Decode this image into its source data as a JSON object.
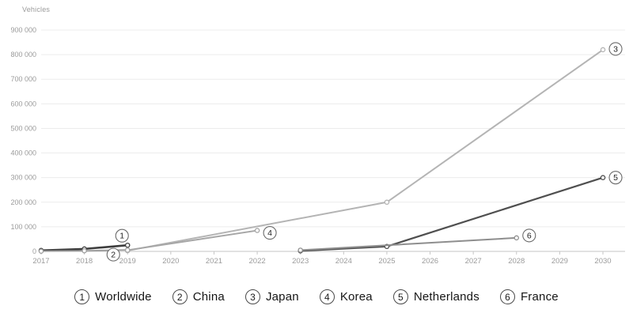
{
  "chart_data": {
    "type": "line",
    "title": "",
    "xlabel": "",
    "ylabel": "Vehicles",
    "x_ticks": [
      2017,
      2018,
      2019,
      2020,
      2021,
      2022,
      2023,
      2024,
      2025,
      2026,
      2027,
      2028,
      2029,
      2030
    ],
    "y_max": 900000,
    "y_gridlines": [
      {
        "value": 900000,
        "label": "900 000"
      },
      {
        "value": 800000,
        "label": "800 000"
      },
      {
        "value": 700000,
        "label": "700 000"
      },
      {
        "value": 600000,
        "label": "600 000"
      },
      {
        "value": 500000,
        "label": "500 000"
      },
      {
        "value": 400000,
        "label": "400 000"
      },
      {
        "value": 300000,
        "label": "300 000"
      },
      {
        "value": 200000,
        "label": "200 000"
      },
      {
        "value": 100000,
        "label": "100 000"
      },
      {
        "value": 0,
        "label": "0"
      }
    ],
    "grid": true,
    "legend_position": "bottom",
    "series": [
      {
        "id": "1",
        "name": "Worldwide",
        "color": "#3d3d3d",
        "width": 2.6,
        "points": [
          [
            2017,
            4000
          ],
          [
            2018,
            10000
          ],
          [
            2019,
            25000
          ]
        ],
        "label_point": [
          2019,
          25000
        ],
        "label_offset": [
          -7,
          -12
        ]
      },
      {
        "id": "2",
        "name": "China",
        "color": "#9c9c9c",
        "width": 1.8,
        "points": [
          [
            2017,
            1000
          ],
          [
            2018,
            2500
          ],
          [
            2019,
            6000
          ]
        ],
        "label_point": [
          2019,
          6000
        ],
        "label_offset": [
          -18,
          6
        ]
      },
      {
        "id": "3",
        "name": "Japan",
        "color": "#b4b4b4",
        "width": 2,
        "points": [
          [
            2019,
            3000
          ],
          [
            2025,
            200000
          ],
          [
            2030,
            820000
          ]
        ],
        "label_point": [
          2030,
          820000
        ],
        "label_offset": [
          16,
          -1
        ]
      },
      {
        "id": "4",
        "name": "Korea",
        "color": "#a6a6a6",
        "width": 2,
        "points": [
          [
            2019,
            5000
          ],
          [
            2022,
            85000
          ]
        ],
        "label_point": [
          2022,
          85000
        ],
        "label_offset": [
          16,
          3
        ]
      },
      {
        "id": "5",
        "name": "Netherlands",
        "color": "#4f4f4f",
        "width": 2.2,
        "points": [
          [
            2023,
            2000
          ],
          [
            2025,
            20000
          ],
          [
            2030,
            300000
          ]
        ],
        "label_point": [
          2030,
          300000
        ],
        "label_offset": [
          16,
          0
        ]
      },
      {
        "id": "6",
        "name": "France",
        "color": "#8e8e8e",
        "width": 2,
        "points": [
          [
            2023,
            5000
          ],
          [
            2028,
            55000
          ]
        ],
        "label_point": [
          2028,
          55000
        ],
        "label_offset": [
          16,
          -3
        ]
      }
    ]
  },
  "legend": {
    "items": [
      {
        "num": "1",
        "label": "Worldwide"
      },
      {
        "num": "2",
        "label": "China"
      },
      {
        "num": "3",
        "label": "Japan"
      },
      {
        "num": "4",
        "label": "Korea"
      },
      {
        "num": "5",
        "label": "Netherlands"
      },
      {
        "num": "6",
        "label": "France"
      }
    ]
  }
}
